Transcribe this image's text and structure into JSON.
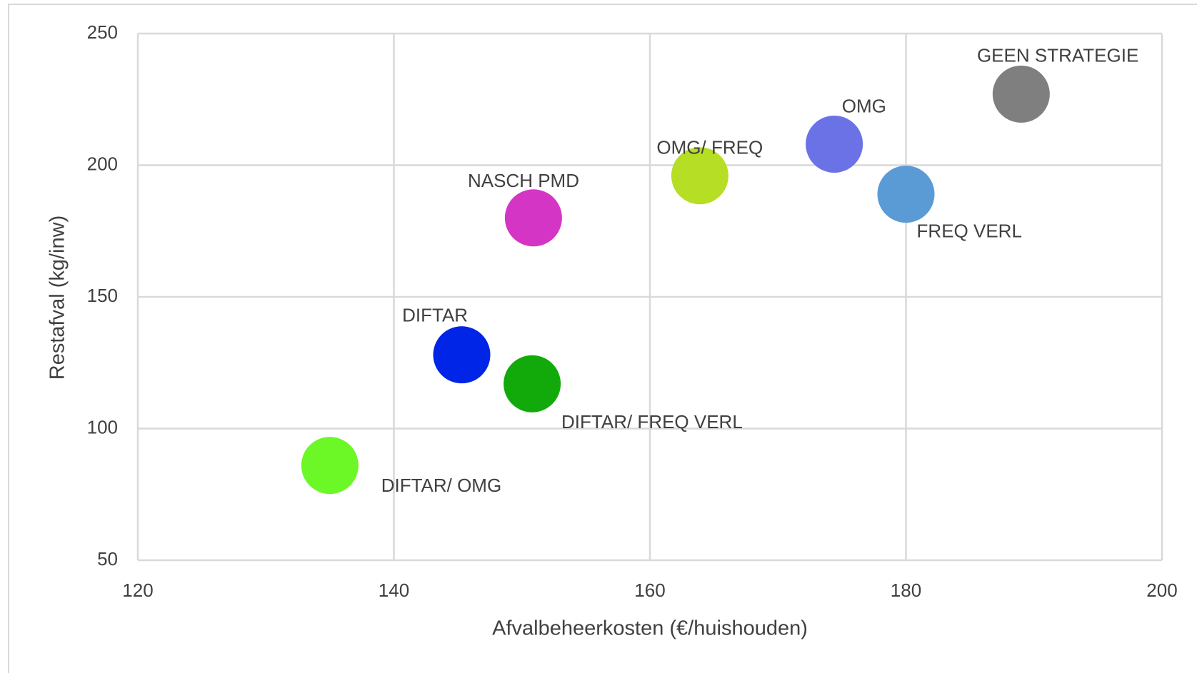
{
  "chart_data": {
    "type": "scatter",
    "x_label": "Afvalbeheerkosten (€/huishouden)",
    "y_label": "Restafval (kg/inw)",
    "xlim": [
      120,
      200
    ],
    "xticks": [
      120,
      140,
      160,
      180,
      200
    ],
    "ylim": [
      50,
      250
    ],
    "yticks": [
      50,
      100,
      150,
      200,
      250
    ],
    "grid": true,
    "series": [
      {
        "name": "GEEN STRATEGIE",
        "color": "#7f7f7f",
        "x": [
          189
        ],
        "values": [
          227
        ]
      },
      {
        "name": "OMG",
        "color": "#6a72e6",
        "x": [
          174.4
        ],
        "values": [
          208
        ]
      },
      {
        "name": "FREQ VERL",
        "color": "#5b9bd5",
        "x": [
          180
        ],
        "values": [
          189
        ]
      },
      {
        "name": "OMG/ FREQ",
        "color": "#b5de24",
        "x": [
          163.9
        ],
        "values": [
          196
        ]
      },
      {
        "name": "NASCH PMD",
        "color": "#d535c4",
        "x": [
          150.9
        ],
        "values": [
          180
        ]
      },
      {
        "name": "DIFTAR",
        "color": "#0025e6",
        "x": [
          145.3
        ],
        "values": [
          128
        ]
      },
      {
        "name": "DIFTAR/ FREQ VERL",
        "color": "#12aa0a",
        "x": [
          150.8
        ],
        "values": [
          117
        ]
      },
      {
        "name": "DIFTAR/ OMG",
        "color": "#6cf726",
        "x": [
          135
        ],
        "values": [
          86
        ]
      }
    ]
  }
}
